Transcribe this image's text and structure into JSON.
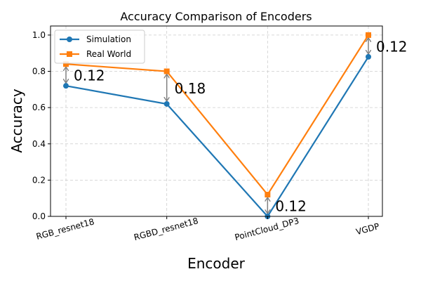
{
  "chart_data": {
    "type": "line",
    "title": "Accuracy Comparison of Encoders",
    "xlabel": "Encoder",
    "ylabel": "Accuracy",
    "categories": [
      "RGB_resnet18",
      "RGBD_resnet18",
      "PointCloud_DP3",
      "VGDP"
    ],
    "ylim": [
      0,
      1.05
    ],
    "yticks": [
      "0.0",
      "0.2",
      "0.4",
      "0.6",
      "0.8",
      "1.0"
    ],
    "grid": true,
    "legend_position": "top-left",
    "series": [
      {
        "name": "Simulation",
        "values": [
          0.72,
          0.62,
          0.0,
          0.88
        ],
        "color": "#1f77b4",
        "marker": "circle"
      },
      {
        "name": "Real World",
        "values": [
          0.84,
          0.8,
          0.12,
          1.0
        ],
        "color": "#ff7f0e",
        "marker": "square"
      }
    ],
    "annotations": [
      "0.12",
      "0.18",
      "0.12",
      "0.12"
    ],
    "arrow_color": "#808080"
  }
}
